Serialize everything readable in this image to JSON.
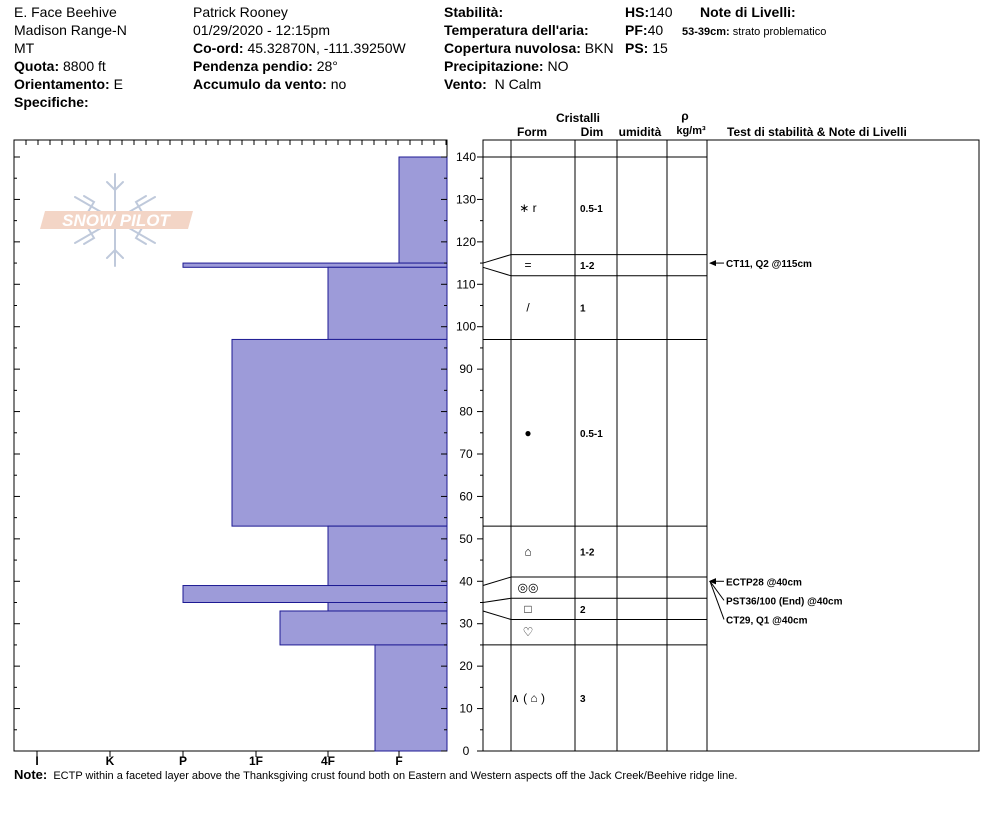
{
  "header": {
    "location": [
      "E. Face Beehive",
      "Madison Range-N",
      "MT"
    ],
    "quota": {
      "label": "Quota:",
      "value": "8800 ft"
    },
    "orientamento": {
      "label": "Orientamento:",
      "value": "E"
    },
    "specifiche": {
      "label": "Specifiche:"
    },
    "observer": "Patrick Rooney",
    "datetime": "01/29/2020 - 12:15pm",
    "coord": {
      "label": "Co-ord:",
      "value": "45.32870N, -111.39250W"
    },
    "pendenza": {
      "label": "Pendenza pendio:",
      "value": "28°"
    },
    "accumulo": {
      "label": "Accumulo da vento:",
      "value": "no"
    },
    "stabilita": {
      "label": "Stabilità:"
    },
    "temperatura": {
      "label": "Temperatura dell'aria:"
    },
    "copertura": {
      "label": "Copertura nuvolosa:",
      "value": "BKN"
    },
    "precipitazione": {
      "label": "Precipitazione:",
      "value": "NO"
    },
    "vento": {
      "label": "Vento:",
      "value": "N Calm"
    },
    "hs": {
      "label": "HS:",
      "value": "140"
    },
    "pf": {
      "label": "PF:",
      "value": "40"
    },
    "ps": {
      "label": "PS:",
      "value": "15"
    },
    "note_livelli": {
      "label": "Note di Livelli:",
      "range": "53-39cm:",
      "text": "strato problematico"
    }
  },
  "logo_text": "SNOW PILOT",
  "columns": {
    "cristalli": "Cristalli",
    "form": "Form",
    "dim": "Dim",
    "umidita": "umidità",
    "rho": "ρ",
    "density_unit": "kg/m³",
    "tests": "Test di stabilità & Note di Livelli"
  },
  "note": {
    "label": "Note:",
    "text": "ECTP within a faceted layer above the Thanksgiving crust found both on Eastern and Western aspects off the Jack Creek/Beehive ridge line."
  },
  "chart_data": {
    "type": "snow_profile",
    "y_axis": {
      "min": 0,
      "max": 140,
      "ticks": [
        0,
        10,
        20,
        30,
        40,
        50,
        60,
        70,
        80,
        90,
        100,
        110,
        120,
        130,
        140
      ]
    },
    "hardness_axis": {
      "labels": [
        "I",
        "K",
        "P",
        "1F",
        "4F",
        "F"
      ]
    },
    "colors": {
      "fill": "#9d9bd9",
      "stroke": "#1d1a93"
    },
    "hardness_layers": [
      {
        "top": 140,
        "bottom": 115,
        "hardness": "F"
      },
      {
        "top": 115,
        "bottom": 114,
        "hardness": "P"
      },
      {
        "top": 114,
        "bottom": 97,
        "hardness": "4F"
      },
      {
        "top": 97,
        "bottom": 53,
        "hardness": "1F+"
      },
      {
        "top": 53,
        "bottom": 39,
        "hardness": "4F"
      },
      {
        "top": 39,
        "bottom": 35,
        "hardness": "P"
      },
      {
        "top": 35,
        "bottom": 33,
        "hardness": "4F"
      },
      {
        "top": 33,
        "bottom": 25,
        "hardness": "1F-"
      },
      {
        "top": 25,
        "bottom": 0,
        "hardness": "F+"
      }
    ],
    "layer_boundaries": [
      140,
      117,
      112,
      97,
      53,
      41,
      36,
      31,
      25,
      0
    ],
    "crystal_rows": [
      {
        "center": 128,
        "form": "∗ r",
        "dim": "0.5-1"
      },
      {
        "center": 114.5,
        "form": "=",
        "dim": "1-2"
      },
      {
        "center": 104.5,
        "form": "/",
        "dim": "1"
      },
      {
        "center": 75,
        "form": "●",
        "dim": "0.5-1"
      },
      {
        "center": 47,
        "form": "⌂",
        "dim": "1-2"
      },
      {
        "center": 38.5,
        "form": "◎◎",
        "dim": ""
      },
      {
        "center": 33.5,
        "form": "□",
        "dim": "2"
      },
      {
        "center": 28,
        "form": "♡",
        "dim": ""
      },
      {
        "center": 12.5,
        "form": "∧ ( ⌂ )",
        "dim": "3"
      }
    ],
    "tests": [
      {
        "depth": 115,
        "label": "CT11, Q2 @115cm"
      },
      {
        "depth": 40,
        "label": "ECTP28 @40cm"
      },
      {
        "depth": 40,
        "label": "PST36/100 (End) @40cm"
      },
      {
        "depth": 40,
        "label": "CT29, Q1 @40cm"
      }
    ]
  }
}
